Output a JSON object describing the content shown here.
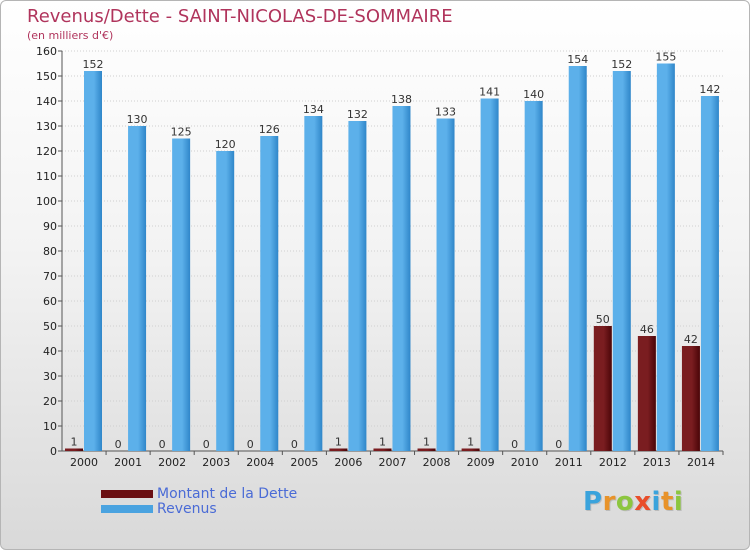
{
  "title": "Revenus/Dette - SAINT-NICOLAS-DE-SOMMAIRE",
  "subtitle": "(en milliers d'€)",
  "brand": {
    "letters": [
      "P",
      "r",
      "o",
      "x",
      "i",
      "t",
      "i"
    ],
    "colors": [
      "#3aa3dc",
      "#e8932a",
      "#8cc63f",
      "#e94e2a",
      "#3aa3dc",
      "#e8932a",
      "#8cc63f"
    ]
  },
  "legend": {
    "items": [
      {
        "label": "Montant de la Dette",
        "color": "#6b0f12"
      },
      {
        "label": "Revenus",
        "color": "#4aa3e0"
      }
    ]
  },
  "chart_data": {
    "type": "bar",
    "categories": [
      "2000",
      "2001",
      "2002",
      "2003",
      "2004",
      "2005",
      "2006",
      "2007",
      "2008",
      "2009",
      "2010",
      "2011",
      "2012",
      "2013",
      "2014"
    ],
    "series": [
      {
        "name": "Montant de la Dette",
        "color": "#6b0f12",
        "values": [
          1,
          0,
          0,
          0,
          0,
          0,
          1,
          1,
          1,
          1,
          0,
          0,
          50,
          46,
          42
        ]
      },
      {
        "name": "Revenus",
        "color": "#4aa3e0",
        "values": [
          152,
          130,
          125,
          120,
          126,
          134,
          132,
          138,
          133,
          141,
          140,
          154,
          152,
          155,
          142
        ]
      }
    ],
    "ylim": [
      0,
      160
    ],
    "yticks": [
      0,
      10,
      20,
      30,
      40,
      50,
      60,
      70,
      80,
      90,
      100,
      110,
      120,
      130,
      140,
      150,
      160
    ],
    "grid": true,
    "legend_position": "bottom-left"
  }
}
